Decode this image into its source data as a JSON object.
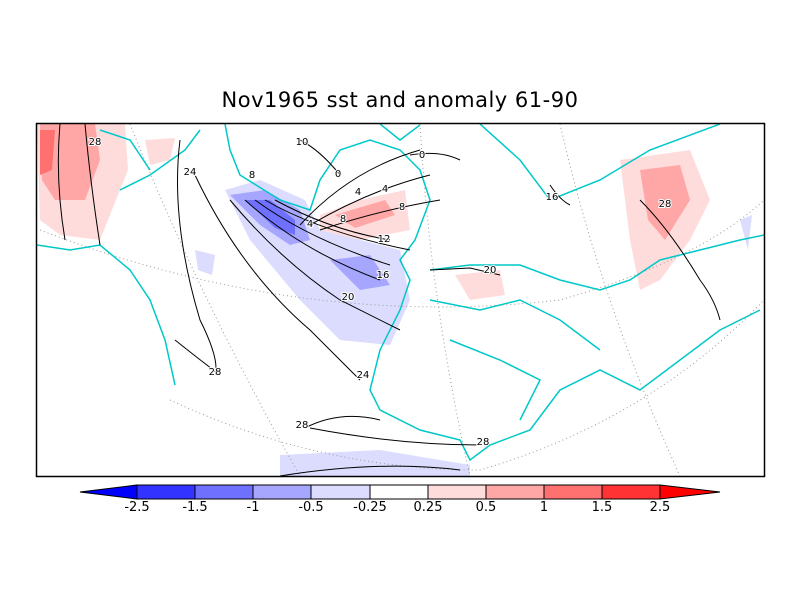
{
  "title": "Nov1965 sst and anomaly 61-90",
  "map": {
    "type": "sst-anomaly-map",
    "region": "North Atlantic / Europe",
    "coastline_color": "#00c8c8",
    "contour_labels": [
      "28",
      "24",
      "8",
      "10",
      "0",
      "0",
      "4",
      "4",
      "4",
      "8",
      "8",
      "12",
      "16",
      "20",
      "20",
      "16",
      "28",
      "28",
      "24",
      "28",
      "28"
    ]
  },
  "colorbar": {
    "colors": [
      "#0000ff",
      "#3333ff",
      "#7070ff",
      "#a6a6ff",
      "#dcdcff",
      "#ffffff",
      "#ffdcdc",
      "#ffa6a6",
      "#ff7070",
      "#ff3333",
      "#ff0000"
    ],
    "labels": [
      "-2.5",
      "-1.5",
      "-1",
      "-0.5",
      "-0.25",
      "0.25",
      "0.5",
      "1",
      "1.5",
      "2.5"
    ]
  }
}
